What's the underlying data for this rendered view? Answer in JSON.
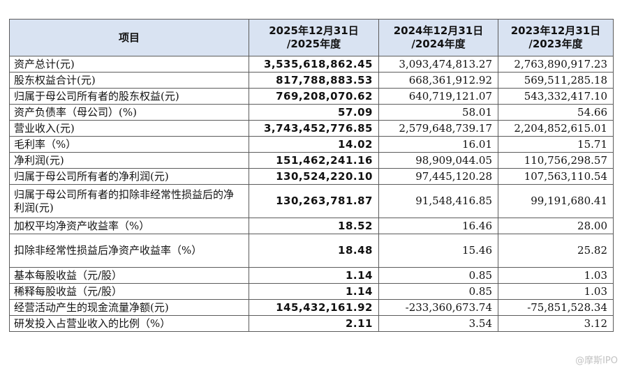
{
  "header": {
    "item": "项目",
    "col1": [
      "2025年12月31日",
      "/2025年度"
    ],
    "col2": [
      "2024年12月31日",
      "/2024年度"
    ],
    "col3": [
      "2023年12月31日",
      "/2023年度"
    ]
  },
  "rows": [
    {
      "label": "资产总计(元)",
      "v2025": "3,535,618,862.45",
      "v2024": "3,093,474,813.27",
      "v2023": "2,763,890,917.23"
    },
    {
      "label": "股东权益合计(元)",
      "v2025": "817,788,883.53",
      "v2024": "668,361,912.92",
      "v2023": "569,511,285.18"
    },
    {
      "label": "归属于母公司所有者的股东权益(元)",
      "v2025": "769,208,070.62",
      "v2024": "640,719,121.07",
      "v2023": "543,332,417.10"
    },
    {
      "label": "资产负债率（母公司）(%)",
      "v2025": "57.09",
      "v2024": "58.01",
      "v2023": "54.66"
    },
    {
      "label": "营业收入(元)",
      "v2025": "3,743,452,776.85",
      "v2024": "2,579,648,739.17",
      "v2023": "2,204,852,615.01"
    },
    {
      "label": "毛利率（%）",
      "v2025": "14.02",
      "v2024": "16.01",
      "v2023": "15.71"
    },
    {
      "label": "净利润(元)",
      "v2025": "151,462,241.16",
      "v2024": "98,909,044.05",
      "v2023": "110,756,298.57"
    },
    {
      "label": "归属于母公司所有者的净利润(元)",
      "v2025": "130,524,220.10",
      "v2024": "97,445,120.28",
      "v2023": "107,563,110.54"
    },
    {
      "label": "归属于母公司所有者的扣除非经常性损益后的净利润(元)",
      "v2025": "130,263,781.87",
      "v2024": "91,548,416.85",
      "v2023": "99,191,680.41",
      "tall": true
    },
    {
      "label": "加权平均净资产收益率（%）",
      "v2025": "18.52",
      "v2024": "16.46",
      "v2023": "28.00"
    },
    {
      "label": "扣除非经常性损益后净资产收益率（%）",
      "v2025": "18.48",
      "v2024": "15.46",
      "v2023": "25.82",
      "tall": true
    },
    {
      "label": "基本每股收益（元/股）",
      "v2025": "1.14",
      "v2024": "0.85",
      "v2023": "1.03"
    },
    {
      "label": "稀释每股收益（元/股）",
      "v2025": "1.14",
      "v2024": "0.85",
      "v2023": "1.03"
    },
    {
      "label": "经营活动产生的现金流量净额(元)",
      "v2025": "145,432,161.92",
      "v2024": "-233,360,673.74",
      "v2023": "-75,851,528.34"
    },
    {
      "label": "研发投入占营业收入的比例（%）",
      "v2025": "2.11",
      "v2024": "3.54",
      "v2023": "3.12"
    }
  ],
  "watermark": "@摩斯IPO",
  "colors": {
    "header_bg": "#d9e3f2",
    "border": "#5b5b5b"
  }
}
